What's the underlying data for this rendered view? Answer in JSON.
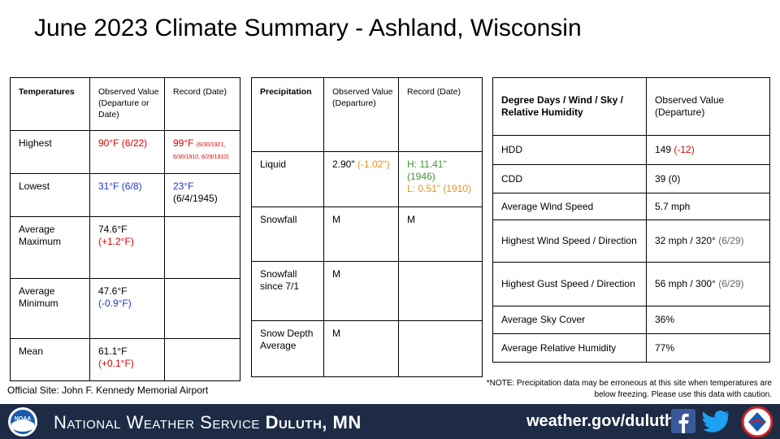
{
  "title": "June 2023 Climate Summary - Ashland, Wisconsin",
  "temperatures": {
    "header": [
      "Temperatures",
      "Observed Value (Departure or Date)",
      "Record (Date)"
    ],
    "rows": [
      {
        "label": "Highest",
        "observed": "90°F (6/22)",
        "record": "99°F",
        "record_date": "(6/30/1921, 6/30/1910, 6/29/1910)"
      },
      {
        "label": "Lowest",
        "observed": "31°F (6/8)",
        "record": "23°F",
        "record_date": "(6/4/1945)"
      },
      {
        "label": "Average Maximum",
        "observed": "74.6°F",
        "departure": "(+1.2°F)"
      },
      {
        "label": "Average Minimum",
        "observed": "47.6°F",
        "departure": "(-0.9°F)"
      },
      {
        "label": "Mean",
        "observed": "61.1°F",
        "departure": "(+0.1°F)"
      }
    ]
  },
  "precipitation": {
    "header": [
      "Precipitation",
      "Observed Value (Departure)",
      "Record (Date)"
    ],
    "rows": [
      {
        "label": "Liquid",
        "observed": "2.90\"",
        "departure": "(-1.02\")",
        "record_high": "H: 11.41\" (1946)",
        "record_low": "L: 0.51\" (1910)"
      },
      {
        "label": "Snowfall",
        "observed": "M",
        "record": "M"
      },
      {
        "label": "Snowfall since 7/1",
        "observed": "M"
      },
      {
        "label": "Snow Depth Average",
        "observed": "M"
      }
    ]
  },
  "degree_days": {
    "header": [
      "Degree Days / Wind / Sky / Relative Humidity",
      "Observed Value (Departure)"
    ],
    "rows": [
      {
        "label": "HDD",
        "observed": "149",
        "departure": "(-12)"
      },
      {
        "label": "CDD",
        "observed": "39 (0)"
      },
      {
        "label": "Average Wind Speed",
        "observed": "5.7 mph"
      },
      {
        "label": "Highest Wind Speed / Direction",
        "observed": "32 mph / 320°",
        "date": "(6/29)"
      },
      {
        "label": "Highest Gust Speed / Direction",
        "observed": "56 mph / 300°",
        "date": "(6/29)"
      },
      {
        "label": "Average Sky Cover",
        "observed": "36%"
      },
      {
        "label": "Average Relative Humidity",
        "observed": "77%"
      }
    ]
  },
  "official_site": "Official Site: John F. Kennedy Memorial Airport",
  "note": "*NOTE:  Precipitation data may be erroneous at this site when temperatures are below freezing. Please use this data with caution.",
  "banner": {
    "logo": "NOAA",
    "agency": "National Weather Service",
    "office": "Duluth, MN",
    "url": "weather.gov/duluth"
  }
}
